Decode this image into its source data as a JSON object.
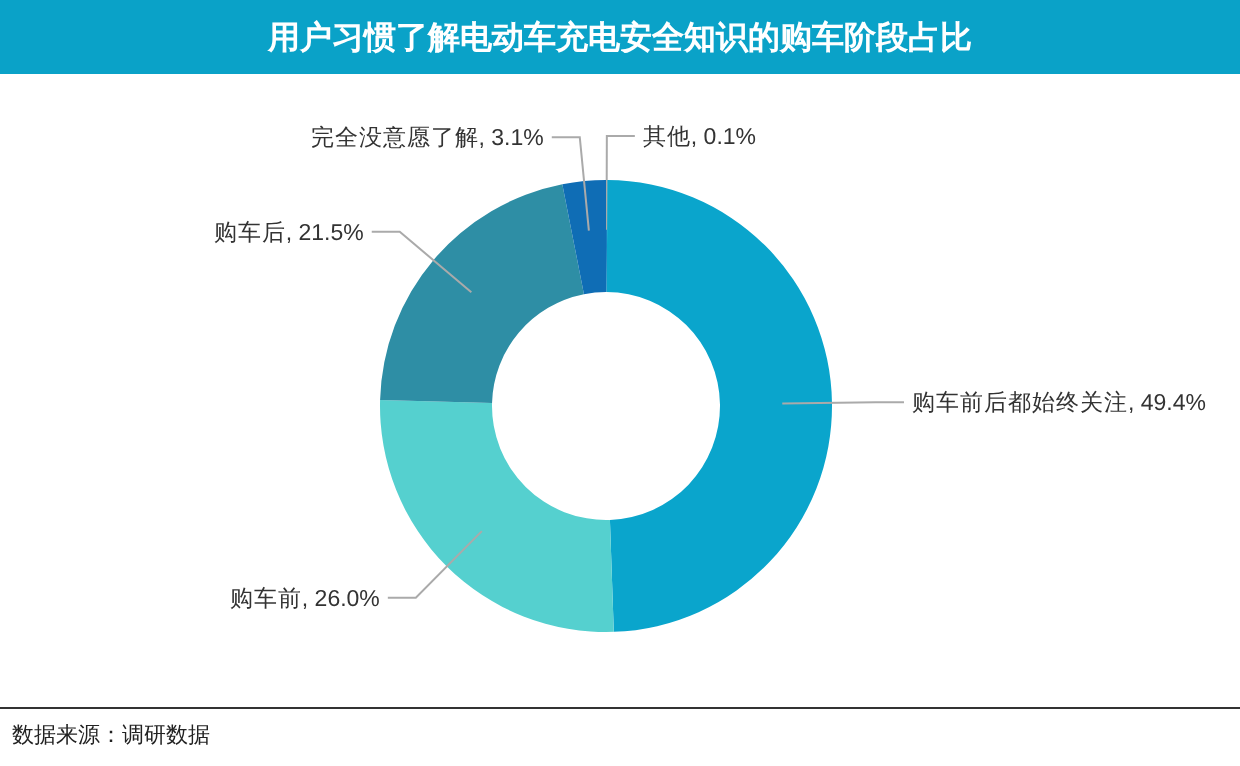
{
  "chart_data": {
    "type": "donut",
    "title": "用户习惯了解电动车充电安全知识的购车阶段占比",
    "categories": [
      "其他",
      "购车前后都始终关注",
      "购车前",
      "购车后",
      "完全没意愿了解"
    ],
    "values": [
      0.1,
      49.4,
      26.0,
      21.5,
      3.1
    ],
    "colors": [
      "#1a7fc0",
      "#0aa5cc",
      "#55d0cf",
      "#2e8ea5",
      "#0f6db5"
    ],
    "value_labels": [
      "0.1%",
      "49.4%",
      "26.0%",
      "21.5%",
      "3.1%"
    ],
    "annotations": [
      "数据来源：调研数据"
    ]
  }
}
